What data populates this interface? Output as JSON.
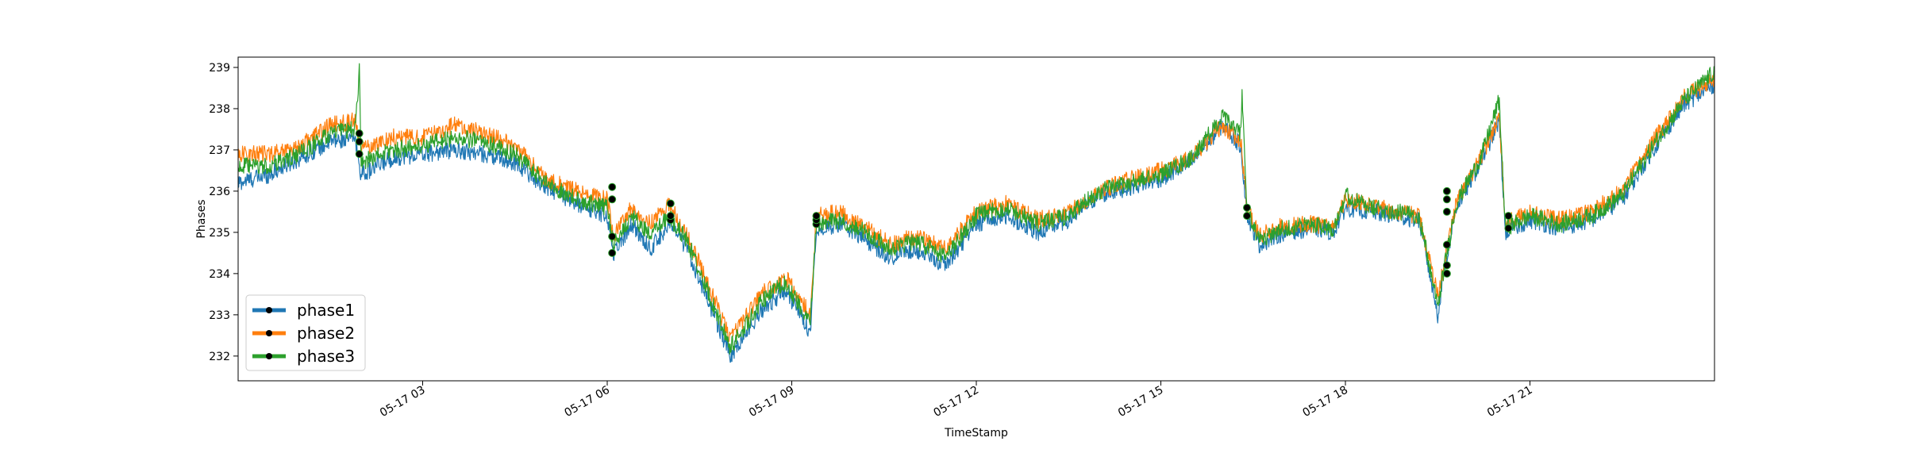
{
  "chart_data": {
    "type": "line",
    "title": "",
    "xlabel": "TimeStamp",
    "ylabel": "Phases",
    "x_range_hours": [
      0,
      24
    ],
    "x_ticks": [
      {
        "hour": 3,
        "label": "05-17 03"
      },
      {
        "hour": 6,
        "label": "05-17 06"
      },
      {
        "hour": 9,
        "label": "05-17 09"
      },
      {
        "hour": 12,
        "label": "05-17 12"
      },
      {
        "hour": 15,
        "label": "05-17 15"
      },
      {
        "hour": 18,
        "label": "05-17 18"
      },
      {
        "hour": 21,
        "label": "05-17 21"
      }
    ],
    "ylim": [
      231.4,
      239.25
    ],
    "y_ticks": [
      232,
      233,
      234,
      235,
      236,
      237,
      238,
      239
    ],
    "grid": false,
    "legend": {
      "placement": "lower-left"
    },
    "series": [
      {
        "name": "phase1",
        "color": "#1f77b4",
        "points": [
          [
            0.0,
            236.2
          ],
          [
            0.5,
            236.4
          ],
          [
            1.0,
            236.8
          ],
          [
            1.5,
            237.2
          ],
          [
            1.9,
            237.3
          ],
          [
            2.0,
            236.4
          ],
          [
            2.5,
            236.8
          ],
          [
            3.0,
            236.9
          ],
          [
            3.5,
            237.0
          ],
          [
            4.0,
            236.9
          ],
          [
            4.5,
            236.7
          ],
          [
            5.0,
            236.1
          ],
          [
            5.5,
            235.7
          ],
          [
            6.0,
            235.4
          ],
          [
            6.1,
            234.5
          ],
          [
            6.4,
            235.2
          ],
          [
            6.7,
            234.6
          ],
          [
            7.0,
            235.2
          ],
          [
            7.3,
            234.6
          ],
          [
            7.6,
            233.5
          ],
          [
            8.0,
            232.0
          ],
          [
            8.5,
            233.1
          ],
          [
            8.9,
            233.6
          ],
          [
            9.3,
            232.6
          ],
          [
            9.4,
            235.1
          ],
          [
            9.8,
            235.2
          ],
          [
            10.2,
            234.8
          ],
          [
            10.6,
            234.4
          ],
          [
            11.0,
            234.6
          ],
          [
            11.5,
            234.2
          ],
          [
            12.0,
            235.2
          ],
          [
            12.5,
            235.4
          ],
          [
            13.0,
            235.0
          ],
          [
            13.5,
            235.3
          ],
          [
            14.0,
            235.9
          ],
          [
            14.5,
            236.1
          ],
          [
            15.0,
            236.3
          ],
          [
            15.5,
            236.7
          ],
          [
            16.0,
            237.6
          ],
          [
            16.3,
            237.1
          ],
          [
            16.4,
            235.4
          ],
          [
            16.6,
            234.7
          ],
          [
            17.0,
            235.0
          ],
          [
            17.5,
            235.1
          ],
          [
            17.8,
            235.0
          ],
          [
            18.0,
            235.6
          ],
          [
            18.4,
            235.5
          ],
          [
            18.8,
            235.4
          ],
          [
            19.2,
            235.3
          ],
          [
            19.5,
            233.0
          ],
          [
            19.6,
            234.0
          ],
          [
            19.8,
            235.6
          ],
          [
            20.2,
            236.7
          ],
          [
            20.5,
            237.7
          ],
          [
            20.6,
            235.0
          ],
          [
            21.0,
            235.3
          ],
          [
            21.5,
            235.1
          ],
          [
            22.0,
            235.3
          ],
          [
            22.5,
            235.8
          ],
          [
            23.0,
            237.0
          ],
          [
            23.5,
            238.1
          ],
          [
            24.0,
            238.6
          ]
        ]
      },
      {
        "name": "phase2",
        "color": "#ff7f0e",
        "points": [
          [
            0.0,
            236.9
          ],
          [
            0.5,
            236.9
          ],
          [
            1.0,
            237.1
          ],
          [
            1.5,
            237.6
          ],
          [
            1.9,
            237.7
          ],
          [
            2.0,
            237.0
          ],
          [
            2.5,
            237.3
          ],
          [
            3.0,
            237.3
          ],
          [
            3.5,
            237.6
          ],
          [
            4.0,
            237.4
          ],
          [
            4.5,
            237.1
          ],
          [
            5.0,
            236.3
          ],
          [
            5.5,
            236.0
          ],
          [
            6.0,
            235.8
          ],
          [
            6.1,
            234.9
          ],
          [
            6.4,
            235.6
          ],
          [
            6.7,
            235.2
          ],
          [
            7.0,
            235.7
          ],
          [
            7.3,
            234.9
          ],
          [
            7.6,
            233.9
          ],
          [
            8.0,
            232.4
          ],
          [
            8.5,
            233.5
          ],
          [
            8.9,
            233.9
          ],
          [
            9.3,
            233.0
          ],
          [
            9.4,
            235.4
          ],
          [
            9.8,
            235.5
          ],
          [
            10.2,
            235.1
          ],
          [
            10.6,
            234.7
          ],
          [
            11.0,
            234.9
          ],
          [
            11.5,
            234.6
          ],
          [
            12.0,
            235.5
          ],
          [
            12.5,
            235.7
          ],
          [
            13.0,
            235.3
          ],
          [
            13.5,
            235.5
          ],
          [
            14.0,
            236.0
          ],
          [
            14.5,
            236.3
          ],
          [
            15.0,
            236.5
          ],
          [
            15.5,
            236.8
          ],
          [
            16.0,
            237.6
          ],
          [
            16.3,
            237.2
          ],
          [
            16.4,
            235.6
          ],
          [
            16.6,
            234.9
          ],
          [
            17.0,
            235.2
          ],
          [
            17.5,
            235.2
          ],
          [
            17.8,
            235.1
          ],
          [
            18.0,
            235.8
          ],
          [
            18.4,
            235.7
          ],
          [
            18.8,
            235.5
          ],
          [
            19.2,
            235.4
          ],
          [
            19.5,
            233.5
          ],
          [
            19.6,
            234.2
          ],
          [
            19.8,
            235.7
          ],
          [
            20.2,
            236.8
          ],
          [
            20.5,
            237.8
          ],
          [
            20.6,
            235.2
          ],
          [
            21.0,
            235.5
          ],
          [
            21.5,
            235.3
          ],
          [
            22.0,
            235.5
          ],
          [
            22.5,
            236.0
          ],
          [
            23.0,
            237.2
          ],
          [
            23.5,
            238.3
          ],
          [
            24.0,
            238.7
          ]
        ]
      },
      {
        "name": "phase3",
        "color": "#2ca02c",
        "points": [
          [
            0.0,
            236.6
          ],
          [
            0.5,
            236.6
          ],
          [
            1.0,
            236.9
          ],
          [
            1.5,
            237.4
          ],
          [
            1.9,
            237.5
          ],
          [
            1.97,
            238.9
          ],
          [
            2.0,
            236.7
          ],
          [
            2.5,
            237.0
          ],
          [
            3.0,
            237.1
          ],
          [
            3.5,
            237.3
          ],
          [
            4.0,
            237.2
          ],
          [
            4.5,
            236.9
          ],
          [
            5.0,
            236.2
          ],
          [
            5.5,
            235.8
          ],
          [
            6.0,
            235.6
          ],
          [
            6.1,
            234.7
          ],
          [
            6.4,
            235.4
          ],
          [
            6.7,
            234.9
          ],
          [
            7.0,
            235.4
          ],
          [
            7.3,
            234.8
          ],
          [
            7.6,
            233.7
          ],
          [
            8.0,
            232.2
          ],
          [
            8.5,
            233.3
          ],
          [
            8.9,
            233.8
          ],
          [
            9.3,
            232.8
          ],
          [
            9.4,
            235.2
          ],
          [
            9.8,
            235.3
          ],
          [
            10.2,
            235.0
          ],
          [
            10.6,
            234.6
          ],
          [
            11.0,
            234.8
          ],
          [
            11.5,
            234.4
          ],
          [
            12.0,
            235.4
          ],
          [
            12.5,
            235.6
          ],
          [
            13.0,
            235.2
          ],
          [
            13.5,
            235.4
          ],
          [
            14.0,
            236.0
          ],
          [
            14.5,
            236.2
          ],
          [
            15.0,
            236.4
          ],
          [
            15.5,
            236.8
          ],
          [
            16.0,
            237.8
          ],
          [
            16.3,
            237.4
          ],
          [
            16.32,
            238.4
          ],
          [
            16.4,
            235.5
          ],
          [
            16.6,
            234.8
          ],
          [
            17.0,
            235.1
          ],
          [
            17.5,
            235.2
          ],
          [
            17.8,
            235.1
          ],
          [
            18.0,
            235.9
          ],
          [
            18.4,
            235.6
          ],
          [
            18.8,
            235.5
          ],
          [
            19.2,
            235.4
          ],
          [
            19.5,
            233.2
          ],
          [
            19.6,
            234.1
          ],
          [
            19.8,
            235.7
          ],
          [
            20.2,
            236.8
          ],
          [
            20.5,
            238.2
          ],
          [
            20.6,
            235.1
          ],
          [
            21.0,
            235.4
          ],
          [
            21.5,
            235.2
          ],
          [
            22.0,
            235.4
          ],
          [
            22.5,
            235.9
          ],
          [
            23.0,
            237.1
          ],
          [
            23.5,
            238.2
          ],
          [
            24.0,
            238.9
          ]
        ]
      }
    ],
    "markers": [
      {
        "hour": 1.97,
        "values": [
          236.9,
          237.2,
          237.4
        ]
      },
      {
        "hour": 6.08,
        "values": [
          234.5,
          234.9,
          235.8,
          236.1
        ]
      },
      {
        "hour": 7.03,
        "values": [
          235.3,
          235.4,
          235.7
        ]
      },
      {
        "hour": 9.4,
        "values": [
          235.2,
          235.3,
          235.4
        ]
      },
      {
        "hour": 16.4,
        "values": [
          235.4,
          235.6
        ]
      },
      {
        "hour": 19.65,
        "values": [
          234.0,
          234.2,
          234.7,
          235.5,
          235.8,
          236.0
        ]
      },
      {
        "hour": 20.65,
        "values": [
          235.1,
          235.4
        ]
      }
    ]
  }
}
